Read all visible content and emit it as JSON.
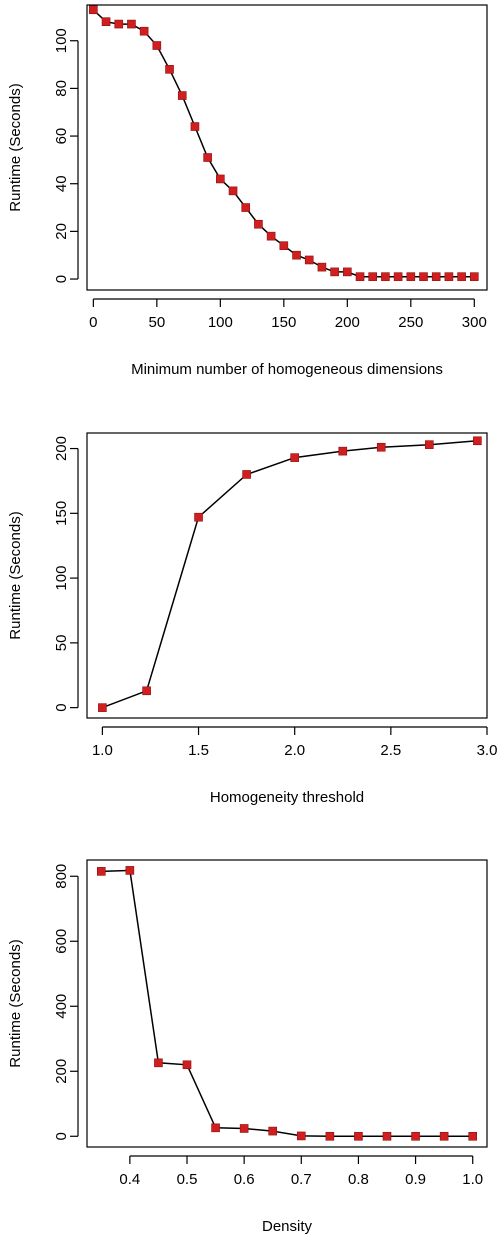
{
  "chart_data": [
    {
      "type": "line",
      "xlabel": "Minimum number of homogeneous dimensions",
      "ylabel": "Runtime  (Seconds)",
      "xlim": [
        -5,
        310
      ],
      "ylim": [
        -4.6,
        115
      ],
      "xticks": [
        "0",
        "50",
        "100",
        "150",
        "200",
        "250",
        "300"
      ],
      "xtick_values": [
        0,
        50,
        100,
        150,
        200,
        250,
        300
      ],
      "yticks": [
        "0",
        "20",
        "40",
        "60",
        "80",
        "100"
      ],
      "ytick_values": [
        0,
        20,
        40,
        60,
        80,
        100
      ],
      "marker_color": "#d11f1f",
      "line_color": "#000000",
      "x": [
        0,
        10,
        20,
        30,
        40,
        50,
        60,
        70,
        80,
        90,
        100,
        110,
        120,
        130,
        140,
        150,
        160,
        170,
        180,
        190,
        200,
        210,
        220,
        230,
        240,
        250,
        260,
        270,
        280,
        290,
        300
      ],
      "y": [
        113,
        108,
        107,
        107,
        104,
        98,
        88,
        77,
        64,
        51,
        42,
        37,
        30,
        23,
        18,
        14,
        10,
        8,
        5,
        3,
        3,
        1,
        1,
        1,
        1,
        1,
        1,
        1,
        1,
        1,
        1
      ]
    },
    {
      "type": "line",
      "xlabel": "Homogeneity threshold",
      "ylabel": "Runtime  (Seconds)",
      "xlim": [
        0.92,
        3.0
      ],
      "ylim": [
        -8,
        212
      ],
      "xticks": [
        "1.0",
        "1.5",
        "2.0",
        "2.5",
        "3.0"
      ],
      "xtick_values": [
        1.0,
        1.5,
        2.0,
        2.5,
        3.0
      ],
      "yticks": [
        "0",
        "50",
        "100",
        "150",
        "200"
      ],
      "ytick_values": [
        0,
        50,
        100,
        150,
        200
      ],
      "marker_color": "#d11f1f",
      "line_color": "#000000",
      "x": [
        1.0,
        1.23,
        1.5,
        1.75,
        2.0,
        2.25,
        2.45,
        2.7,
        2.95
      ],
      "y": [
        0,
        13,
        147,
        180,
        193,
        198,
        201,
        203,
        206
      ]
    },
    {
      "type": "line",
      "xlabel": "Density",
      "ylabel": "Runtime  (Seconds)",
      "xlim": [
        0.325,
        1.025
      ],
      "ylim": [
        -33,
        850
      ],
      "xticks": [
        "0.4",
        "0.5",
        "0.6",
        "0.7",
        "0.8",
        "0.9",
        "1.0"
      ],
      "xtick_values": [
        0.4,
        0.5,
        0.6,
        0.7,
        0.8,
        0.9,
        1.0
      ],
      "yticks": [
        "0",
        "200",
        "400",
        "600",
        "800"
      ],
      "ytick_values": [
        0,
        200,
        400,
        600,
        800
      ],
      "marker_color": "#d11f1f",
      "line_color": "#000000",
      "x": [
        0.35,
        0.4,
        0.45,
        0.5,
        0.55,
        0.6,
        0.65,
        0.7,
        0.75,
        0.8,
        0.85,
        0.9,
        0.95,
        1.0
      ],
      "y": [
        815,
        818,
        226,
        220,
        26,
        24,
        16,
        1,
        0,
        0,
        0,
        0,
        0,
        0
      ]
    }
  ]
}
